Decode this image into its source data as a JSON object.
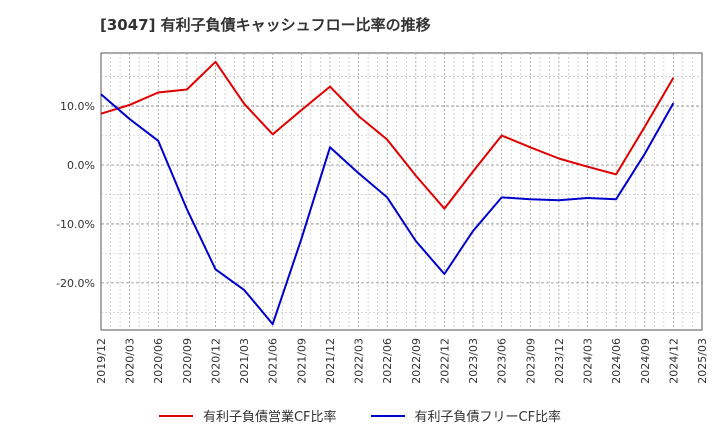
{
  "chart_data": {
    "type": "line",
    "title": "[3047]  有利子負債キャッシュフロー比率の推移",
    "x": [
      "2019/12",
      "2020/03",
      "2020/06",
      "2020/09",
      "2020/12",
      "2021/03",
      "2021/06",
      "2021/09",
      "2021/12",
      "2022/03",
      "2022/06",
      "2022/09",
      "2022/12",
      "2023/03",
      "2023/06",
      "2023/09",
      "2023/12",
      "2024/03",
      "2024/06",
      "2024/09",
      "2024/12",
      "2025/03"
    ],
    "yticks": [
      10,
      0,
      -10,
      -20
    ],
    "ytick_labels": [
      "10.0%",
      "0.0%",
      "-10.0%",
      "-20.0%"
    ],
    "ylim": [
      -28,
      19
    ],
    "grid": true,
    "legend": "bottom",
    "series": [
      {
        "name": "有利子負債営業CF比率",
        "color": "#e00000",
        "values": [
          8.7,
          10.2,
          12.3,
          12.8,
          17.5,
          10.4,
          5.2,
          9.3,
          13.3,
          8.3,
          4.3,
          -1.8,
          -7.4,
          -1.1,
          5.0,
          3.0,
          1.1,
          -0.3,
          -1.6,
          6.5,
          14.8,
          null
        ]
      },
      {
        "name": "有利子負債フリーCF比率",
        "color": "#0000cc",
        "values": [
          12.0,
          7.8,
          4.1,
          -7.5,
          -17.7,
          -21.2,
          -27.0,
          -12.6,
          3.0,
          -1.4,
          -5.5,
          -12.9,
          -18.5,
          -11.2,
          -5.5,
          -5.8,
          -6.0,
          -5.6,
          -5.8,
          1.9,
          10.5,
          null
        ]
      }
    ]
  }
}
